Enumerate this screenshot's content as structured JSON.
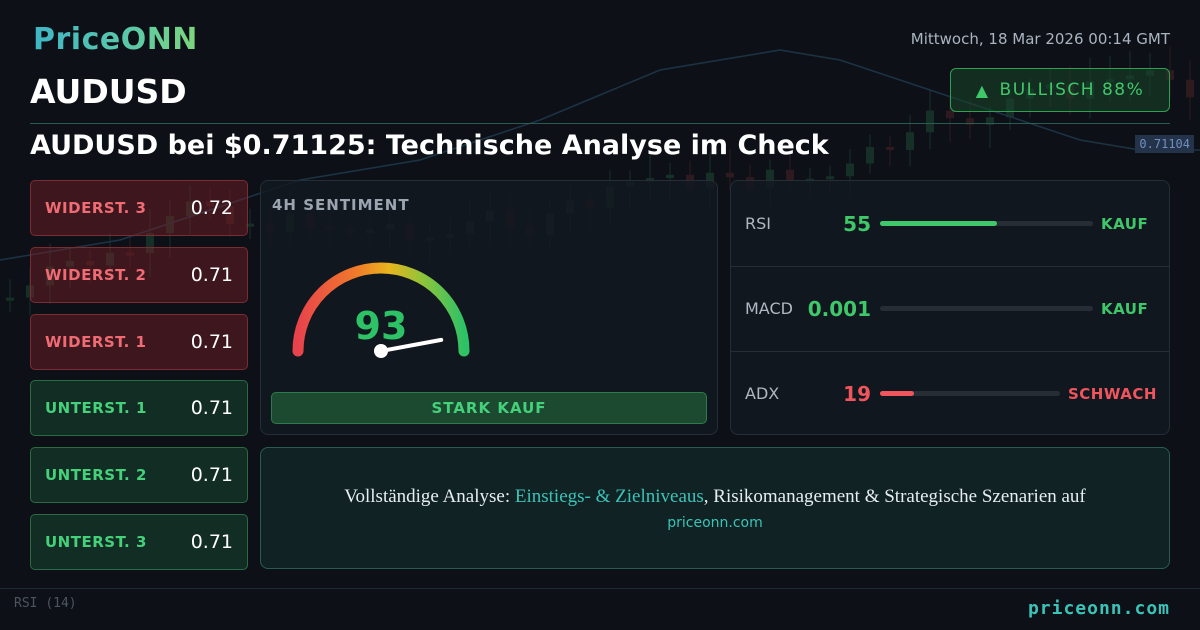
{
  "header": {
    "logo": "PriceONN",
    "symbol": "AUDUSD",
    "datetime": "Mittwoch, 18 Mar 2026 00:14 GMT",
    "sentiment_badge": {
      "arrow": "▲",
      "label": "BULLISCH 88%"
    },
    "headline": "AUDUSD bei $0.71125: Technische Analyse im Check"
  },
  "levels": [
    {
      "label": "WIDERST. 3",
      "value": "0.72",
      "kind": "resistance"
    },
    {
      "label": "WIDERST. 2",
      "value": "0.71",
      "kind": "resistance"
    },
    {
      "label": "WIDERST. 1",
      "value": "0.71",
      "kind": "resistance"
    },
    {
      "label": "UNTERST. 1",
      "value": "0.71",
      "kind": "support"
    },
    {
      "label": "UNTERST. 2",
      "value": "0.71",
      "kind": "support"
    },
    {
      "label": "UNTERST. 3",
      "value": "0.71",
      "kind": "support"
    }
  ],
  "sentiment": {
    "title": "4H SENTIMENT",
    "value": "93",
    "gauge_fraction": 0.93,
    "verdict": "STARK KAUF"
  },
  "indicators": [
    {
      "name": "RSI",
      "value": "55",
      "fill_fraction": 0.55,
      "signal": "KAUF",
      "tone": "green"
    },
    {
      "name": "MACD",
      "value": "0.001",
      "fill_fraction": 0.0,
      "signal": "KAUF",
      "tone": "green"
    },
    {
      "name": "ADX",
      "value": "19",
      "fill_fraction": 0.19,
      "signal": "SCHWACH",
      "tone": "red"
    }
  ],
  "cta": {
    "prefix": "Vollständige Analyse: ",
    "highlight": "Einstiegs- & Zielniveaus",
    "suffix": ", Risikomanagement & Strategische Szenarien auf",
    "url": "priceonn.com"
  },
  "footer": {
    "url": "priceonn.com"
  },
  "background": {
    "price_tag": "0.71104",
    "rsi_label": "RSI",
    "rsi_period": "(14)"
  },
  "colors": {
    "accent": "#3bc3b8",
    "bullish": "#3fc86a",
    "bearish": "#f0555e",
    "background": "#0d1117"
  }
}
